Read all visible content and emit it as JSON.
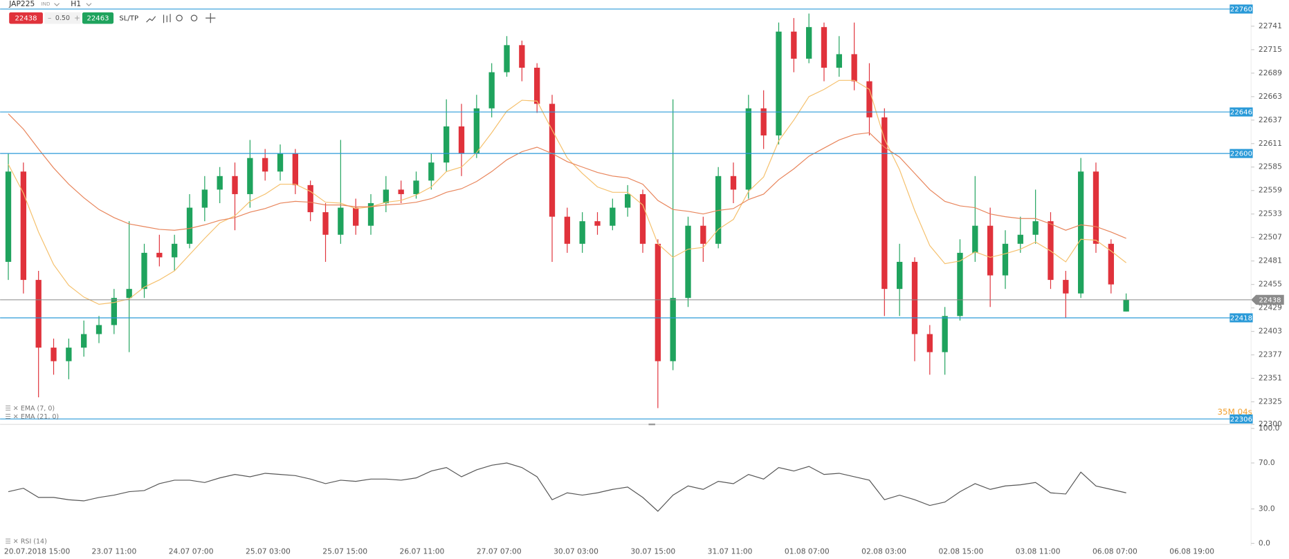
{
  "header": {
    "symbol": "JAP225",
    "kind": "IND",
    "timeframe": "H1",
    "sell": 22438,
    "spread": "0.50",
    "buy": 22463,
    "sltp": "SL/TP"
  },
  "chart_data": {
    "type": "candlestick",
    "ylim": [
      22300,
      22770
    ],
    "yticks": [
      22741,
      22715,
      22689,
      22663,
      22637,
      22611,
      22585,
      22559,
      22533,
      22507,
      22481,
      22455,
      22429,
      22403,
      22377,
      22351,
      22325,
      22300
    ],
    "up_color": "#1fa35d",
    "down_color": "#e0323b",
    "open": [
      22480,
      22580,
      22460,
      22385,
      22370,
      22385,
      22400,
      22410,
      22440,
      22450,
      22490,
      22485,
      22500,
      22540,
      22560,
      22575,
      22555,
      22595,
      22580,
      22600,
      22565,
      22535,
      22510,
      22540,
      22520,
      22545,
      22560,
      22555,
      22570,
      22590,
      22630,
      22600,
      22650,
      22690,
      22720,
      22695,
      22655,
      22530,
      22500,
      22525,
      22520,
      22540,
      22555,
      22500,
      22370,
      22440,
      22520,
      22500,
      22575,
      22560,
      22650,
      22620,
      22735,
      22705,
      22740,
      22695,
      22710,
      22680,
      22640,
      22450,
      22480,
      22400,
      22380,
      22420,
      22490,
      22520,
      22465,
      22500,
      22510,
      22525,
      22460,
      22445,
      22580,
      22500,
      22425
    ],
    "high": [
      22600,
      22590,
      22470,
      22395,
      22395,
      22415,
      22420,
      22450,
      22525,
      22500,
      22510,
      22510,
      22555,
      22575,
      22585,
      22590,
      22615,
      22605,
      22610,
      22605,
      22570,
      22545,
      22615,
      22550,
      22555,
      22575,
      22570,
      22580,
      22600,
      22660,
      22655,
      22665,
      22700,
      22730,
      22725,
      22700,
      22665,
      22540,
      22535,
      22535,
      22550,
      22565,
      22560,
      22505,
      22660,
      22530,
      22530,
      22585,
      22590,
      22665,
      22670,
      22745,
      22750,
      22755,
      22745,
      22730,
      22745,
      22700,
      22650,
      22500,
      22485,
      22410,
      22430,
      22505,
      22575,
      22540,
      22515,
      22530,
      22560,
      22535,
      22470,
      22595,
      22590,
      22505,
      22445
    ],
    "low": [
      22460,
      22445,
      22330,
      22355,
      22350,
      22375,
      22390,
      22400,
      22380,
      22440,
      22475,
      22470,
      22495,
      22525,
      22545,
      22515,
      22540,
      22570,
      22570,
      22555,
      22525,
      22480,
      22500,
      22510,
      22510,
      22535,
      22545,
      22550,
      22560,
      22580,
      22575,
      22595,
      22640,
      22685,
      22680,
      22645,
      22480,
      22490,
      22490,
      22510,
      22515,
      22530,
      22490,
      22318,
      22360,
      22430,
      22480,
      22495,
      22545,
      22550,
      22605,
      22610,
      22690,
      22700,
      22680,
      22685,
      22670,
      22620,
      22420,
      22420,
      22370,
      22355,
      22355,
      22415,
      22480,
      22430,
      22450,
      22490,
      22500,
      22450,
      22418,
      22440,
      22490,
      22445,
      22425
    ],
    "close": [
      22580,
      22460,
      22385,
      22370,
      22385,
      22400,
      22410,
      22440,
      22450,
      22490,
      22485,
      22500,
      22540,
      22560,
      22575,
      22555,
      22595,
      22580,
      22600,
      22565,
      22535,
      22510,
      22540,
      22520,
      22545,
      22560,
      22555,
      22570,
      22590,
      22630,
      22600,
      22650,
      22690,
      22720,
      22695,
      22655,
      22530,
      22500,
      22525,
      22520,
      22540,
      22555,
      22500,
      22370,
      22440,
      22520,
      22500,
      22575,
      22560,
      22650,
      22620,
      22735,
      22705,
      22740,
      22695,
      22710,
      22680,
      22640,
      22450,
      22480,
      22400,
      22380,
      22420,
      22490,
      22520,
      22465,
      22500,
      22510,
      22525,
      22460,
      22445,
      22580,
      22500,
      22455,
      22438
    ],
    "indicators": [
      {
        "name": "EMA (7, 0)",
        "color": "#f5c06c",
        "values": [
          22588,
          22556,
          22513,
          22477,
          22454,
          22441,
          22433,
          22435,
          22439,
          22452,
          22460,
          22470,
          22488,
          22506,
          22523,
          22531,
          22547,
          22555,
          22566,
          22566,
          22558,
          22546,
          22545,
          22539,
          22541,
          22546,
          22548,
          22554,
          22563,
          22580,
          22585,
          22601,
          22623,
          22647,
          22659,
          22658,
          22626,
          22595,
          22578,
          22563,
          22557,
          22557,
          22543,
          22500,
          22485,
          22494,
          22496,
          22516,
          22527,
          22558,
          22574,
          22614,
          22637,
          22663,
          22671,
          22681,
          22681,
          22671,
          22616,
          22582,
          22537,
          22498,
          22478,
          22481,
          22491,
          22485,
          22489,
          22494,
          22502,
          22492,
          22480,
          22505,
          22504,
          22492,
          22479
        ]
      },
      {
        "name": "EMA (21, 0)",
        "color": "#e8845a",
        "values": [
          22644,
          22627,
          22605,
          22584,
          22566,
          22551,
          22538,
          22529,
          22522,
          22519,
          22516,
          22515,
          22517,
          22521,
          22526,
          22529,
          22535,
          22539,
          22545,
          22547,
          22546,
          22543,
          22543,
          22541,
          22541,
          22543,
          22544,
          22546,
          22550,
          22557,
          22561,
          22569,
          22580,
          22593,
          22602,
          22607,
          22600,
          22591,
          22585,
          22579,
          22575,
          22573,
          22566,
          22548,
          22538,
          22536,
          22533,
          22537,
          22539,
          22549,
          22555,
          22571,
          22583,
          22597,
          22606,
          22615,
          22621,
          22623,
          22607,
          22596,
          22578,
          22560,
          22547,
          22542,
          22540,
          22533,
          22530,
          22528,
          22528,
          22522,
          22515,
          22521,
          22519,
          22513,
          22506
        ]
      }
    ],
    "levels": [
      22760,
      22646,
      22600,
      22418,
      22306
    ],
    "level_color": "#2a9ad8",
    "last_price": 22438,
    "countdown": "35M 04s",
    "xticks": [
      "20.07.2018 15:00",
      "23.07 11:00",
      "24.07 07:00",
      "25.07 03:00",
      "25.07 15:00",
      "26.07 11:00",
      "27.07 07:00",
      "30.07 03:00",
      "30.07 15:00",
      "31.07 11:00",
      "01.08 07:00",
      "02.08 03:00",
      "02.08 15:00",
      "03.08 11:00",
      "06.08 07:00",
      "06.08 19:00"
    ],
    "rsi": {
      "name": "RSI (14)",
      "color": "#555555",
      "ylim": [
        0,
        100
      ],
      "yticks": [
        {
          "value": 100,
          "label": "100.0"
        },
        {
          "value": 70,
          "label": "70.0"
        },
        {
          "value": 30,
          "label": "30.0"
        },
        {
          "value": 0,
          "label": "0.0"
        }
      ],
      "values": [
        45,
        48,
        40,
        40,
        38,
        37,
        40,
        42,
        45,
        46,
        52,
        55,
        55,
        53,
        57,
        60,
        58,
        61,
        60,
        59,
        56,
        52,
        55,
        54,
        56,
        56,
        55,
        57,
        63,
        66,
        58,
        64,
        68,
        70,
        66,
        58,
        38,
        44,
        42,
        44,
        47,
        49,
        40,
        28,
        42,
        50,
        47,
        54,
        52,
        60,
        56,
        66,
        63,
        67,
        60,
        61,
        58,
        55,
        38,
        42,
        38,
        33,
        36,
        45,
        52,
        47,
        50,
        51,
        53,
        44,
        43,
        62,
        50,
        47,
        44
      ]
    }
  }
}
